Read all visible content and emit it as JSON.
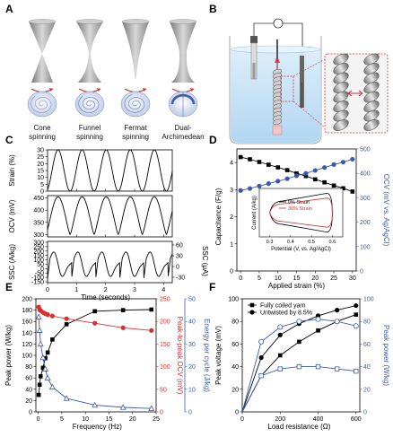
{
  "panels": {
    "A": {
      "letter": "A",
      "captions": [
        [
          "Cone",
          "spinning"
        ],
        [
          "Funnel",
          "spinning"
        ],
        [
          "Fermat",
          "spinning"
        ],
        [
          "Dual-",
          "Archimedean"
        ]
      ]
    },
    "B": {
      "letter": "B"
    },
    "C": {
      "letter": "C"
    },
    "D": {
      "letter": "D"
    },
    "E": {
      "letter": "E"
    },
    "F": {
      "letter": "F"
    }
  },
  "chart_data": [
    {
      "panel": "C",
      "type": "line",
      "xlabel": "Time (seconds)",
      "x_ticks": [
        0,
        1,
        2,
        3,
        4
      ],
      "xlim": [
        0,
        4.3
      ],
      "subplots": [
        {
          "ylabel": "Strain (%)",
          "y_ticks": [
            0,
            5,
            10,
            15,
            20,
            25,
            30
          ],
          "ylim": [
            0,
            30
          ],
          "shape": "sine",
          "period": 0.83,
          "min": 0,
          "max": 30
        },
        {
          "ylabel": "OCV (mV)",
          "y_ticks": [
            300,
            350,
            400,
            450
          ],
          "ylim": [
            290,
            460
          ],
          "shape": "sine-cusp",
          "period": 0.83,
          "min": 300,
          "max": 455
        },
        {
          "ylabel": "SSC (A/kg)",
          "ylabel_right": "SSC (μA)",
          "y_ticks": [
            -150,
            -100,
            -50,
            0,
            50,
            100,
            150,
            200,
            250,
            300
          ],
          "y_ticks_right": [
            -30,
            0,
            30,
            60
          ],
          "ylim": [
            -160,
            310
          ],
          "shape": "current-spike",
          "period": 0.83
        }
      ]
    },
    {
      "panel": "D",
      "type": "line",
      "xlabel": "Applied strain (%)",
      "ylabel": "Capacitance (F/g)",
      "ylabel_right": "OCV (mV vs. Ag/AgCl)",
      "x_ticks": [
        0,
        5,
        10,
        15,
        20,
        25,
        30
      ],
      "xlim": [
        -1,
        31
      ],
      "y_ticks": [
        0,
        1,
        2,
        3,
        4
      ],
      "ylim": [
        0,
        4.5
      ],
      "y_ticks_right": [
        0,
        100,
        200,
        300,
        400,
        500
      ],
      "ylim_right": [
        0,
        500
      ],
      "series": [
        {
          "axis": "left",
          "color": "#000000",
          "marker": "square",
          "x": [
            0,
            2.5,
            5,
            7.5,
            10,
            12.5,
            15,
            17.5,
            20,
            22.5,
            25,
            27.5,
            30
          ],
          "y": [
            4.2,
            4.12,
            4.02,
            3.92,
            3.82,
            3.72,
            3.6,
            3.5,
            3.38,
            3.27,
            3.15,
            3.05,
            2.93
          ]
        },
        {
          "axis": "right",
          "color": "#3b5ba8",
          "marker": "circle",
          "x": [
            0,
            2.5,
            5,
            7.5,
            10,
            12.5,
            15,
            17.5,
            20,
            22.5,
            25,
            27.5,
            30
          ],
          "y": [
            330,
            338,
            348,
            358,
            368,
            378,
            390,
            400,
            412,
            424,
            436,
            446,
            458
          ]
        }
      ],
      "inset": {
        "xlabel": "Potential (V, vs. Ag/AgCl)",
        "ylabel": "Current (A/kg)",
        "x_ticks": [
          0.3,
          0.4,
          0.5,
          0.6
        ],
        "xlim": [
          0.25,
          0.65
        ],
        "ylim": [
          -1,
          1
        ],
        "legend": [
          "0% Strain",
          "30% Strain"
        ],
        "series": [
          {
            "name": "0% Strain",
            "color": "#000000",
            "amplitude": 0.8
          },
          {
            "name": "30% Strain",
            "color": "#d03030",
            "amplitude": 0.6
          }
        ]
      }
    },
    {
      "panel": "E",
      "type": "line",
      "xlabel": "Frequency (Hz)",
      "ylabel": "Peak power (W/kg)",
      "ylabel_right": "Peak-to-peak OCV (mV)",
      "ylabel_right2": "Energy per cycle (J/kg)",
      "x_ticks": [
        0,
        5,
        10,
        15,
        20,
        25
      ],
      "xlim": [
        -0.5,
        25
      ],
      "y_ticks": [
        0,
        20,
        40,
        60,
        80,
        100,
        120,
        140,
        160,
        180,
        200
      ],
      "ylim": [
        0,
        200
      ],
      "y_ticks_right": [
        0,
        50,
        100,
        150,
        200,
        250
      ],
      "ylim_right": [
        0,
        250
      ],
      "y_ticks_right2": [
        0,
        10,
        20,
        30,
        40,
        50
      ],
      "ylim_right2": [
        0,
        50
      ],
      "series": [
        {
          "axis": "left",
          "color": "#000000",
          "marker": "square",
          "x": [
            0.1,
            0.3,
            0.5,
            1,
            1.5,
            2,
            3,
            6,
            12,
            18,
            24
          ],
          "y": [
            30,
            48,
            63,
            78,
            95,
            105,
            128,
            155,
            178,
            180,
            181
          ]
        },
        {
          "axis": "right",
          "color": "#d83030",
          "marker": "circle",
          "x": [
            0.1,
            0.3,
            0.5,
            1,
            1.5,
            2,
            3,
            6,
            12,
            18,
            24
          ],
          "y": [
            232,
            226,
            224,
            220,
            217,
            215,
            212,
            206,
            196,
            186,
            180
          ]
        },
        {
          "axis": "right2",
          "color": "#3b5ba8",
          "marker": "triangle-open",
          "x": [
            0.1,
            0.3,
            0.5,
            1,
            1.5,
            2,
            3,
            6,
            12,
            18,
            24
          ],
          "y": [
            42,
            36,
            30,
            24,
            19,
            15,
            11,
            6,
            3,
            2,
            1.5
          ]
        }
      ]
    },
    {
      "panel": "F",
      "type": "line",
      "xlabel": "Load resistance (Ω)",
      "ylabel": "Peak voltage (mV)",
      "ylabel_right": "Peak power (W/kg)",
      "x_ticks": [
        0,
        200,
        400,
        600
      ],
      "xlim": [
        0,
        620
      ],
      "y_ticks": [
        0,
        20,
        40,
        60,
        80,
        100
      ],
      "ylim": [
        0,
        100
      ],
      "y_ticks_right": [
        0,
        20,
        40,
        60,
        80,
        100
      ],
      "ylim_right": [
        0,
        100
      ],
      "legend": [
        "Fully coiled yarn",
        "Untwisted by 8.5%"
      ],
      "series": [
        {
          "name": "Fully coiled yarn",
          "axis": "left",
          "color": "#000000",
          "marker": "square",
          "x": [
            100,
            200,
            300,
            400,
            500,
            600
          ],
          "y": [
            32,
            50,
            62,
            72,
            80,
            86
          ]
        },
        {
          "name": "Untwisted by 8.5%",
          "axis": "left",
          "color": "#000000",
          "marker": "circle",
          "x": [
            100,
            200,
            300,
            400,
            500,
            600
          ],
          "y": [
            48,
            68,
            78,
            85,
            90,
            94
          ]
        },
        {
          "axis": "right",
          "color": "#3b5ba8",
          "marker": "circle-open",
          "x": [
            100,
            200,
            300,
            400,
            500,
            600
          ],
          "y": [
            62,
            75,
            80,
            82,
            80,
            76
          ]
        },
        {
          "axis": "right",
          "color": "#3b5ba8",
          "marker": "square-open",
          "x": [
            100,
            200,
            300,
            400,
            500,
            600
          ],
          "y": [
            32,
            38,
            40,
            40,
            38,
            36
          ]
        }
      ]
    }
  ]
}
